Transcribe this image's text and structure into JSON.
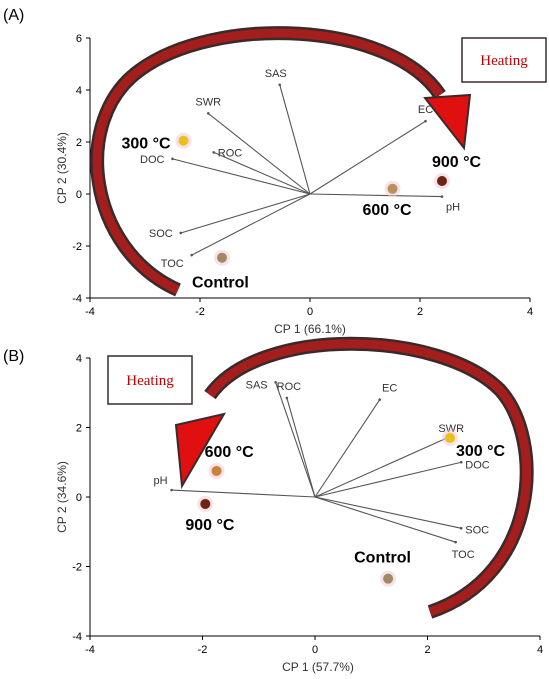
{
  "chart_data": [
    {
      "type": "scatter",
      "panel_label": "(A)",
      "xlabel": "CP 1 (66.1%)",
      "ylabel": "CP 2 (30.4%)",
      "xlim": [
        -4,
        4
      ],
      "ylim": [
        -4,
        6
      ],
      "xticks": [
        -4,
        -2,
        0,
        2,
        4
      ],
      "yticks": [
        -4,
        -2,
        0,
        2,
        4,
        6
      ],
      "loadings": [
        {
          "name": "SAS",
          "x": -0.55,
          "y": 4.2
        },
        {
          "name": "SWR",
          "x": -1.85,
          "y": 3.1
        },
        {
          "name": "ROC",
          "x": -1.75,
          "y": 1.6
        },
        {
          "name": "DOC",
          "x": -2.5,
          "y": 1.35
        },
        {
          "name": "EC",
          "x": 2.1,
          "y": 2.8
        },
        {
          "name": "pH",
          "x": 2.4,
          "y": -0.1
        },
        {
          "name": "SOC",
          "x": -2.35,
          "y": -1.5
        },
        {
          "name": "TOC",
          "x": -2.15,
          "y": -2.35
        }
      ],
      "scores": [
        {
          "name": "300 °C",
          "x": -2.3,
          "y": 2.05,
          "color": "#e8c21a"
        },
        {
          "name": "900 °C",
          "x": 2.4,
          "y": 0.5,
          "color": "#6b2412"
        },
        {
          "name": "600 °C",
          "x": 1.5,
          "y": 0.2,
          "color": "#b8905a"
        },
        {
          "name": "Control",
          "x": -1.6,
          "y": -2.45,
          "color": "#a08a65"
        }
      ],
      "annotation": "Heating",
      "arrow_direction": "clockwise from lower-left to upper-right"
    },
    {
      "type": "scatter",
      "panel_label": "(B)",
      "xlabel": "CP 1 (57.7%)",
      "ylabel": "CP 2 (34.6%)",
      "xlim": [
        -4,
        4
      ],
      "ylim": [
        -4,
        4
      ],
      "xticks": [
        -4,
        -2,
        0,
        2,
        4
      ],
      "yticks": [
        -4,
        -2,
        0,
        2,
        4
      ],
      "loadings": [
        {
          "name": "SAS",
          "x": -0.7,
          "y": 3.3
        },
        {
          "name": "ROC",
          "x": -0.5,
          "y": 2.85
        },
        {
          "name": "EC",
          "x": 1.15,
          "y": 2.8
        },
        {
          "name": "SWR",
          "x": 2.35,
          "y": 1.7
        },
        {
          "name": "DOC",
          "x": 2.6,
          "y": 1.0
        },
        {
          "name": "SOC",
          "x": 2.6,
          "y": -0.9
        },
        {
          "name": "TOC",
          "x": 2.5,
          "y": -1.3
        },
        {
          "name": "pH",
          "x": -2.55,
          "y": 0.2
        }
      ],
      "scores": [
        {
          "name": "300 °C",
          "x": 2.4,
          "y": 1.7,
          "color": "#e8c21a"
        },
        {
          "name": "600 °C",
          "x": -1.75,
          "y": 0.75,
          "color": "#c8823a"
        },
        {
          "name": "900 °C",
          "x": -1.95,
          "y": -0.2,
          "color": "#6b2412"
        },
        {
          "name": "Control",
          "x": 1.3,
          "y": -2.35,
          "color": "#a08a65"
        }
      ],
      "annotation": "Heating",
      "arrow_direction": "counter-clockwise from right to lower-left"
    }
  ]
}
